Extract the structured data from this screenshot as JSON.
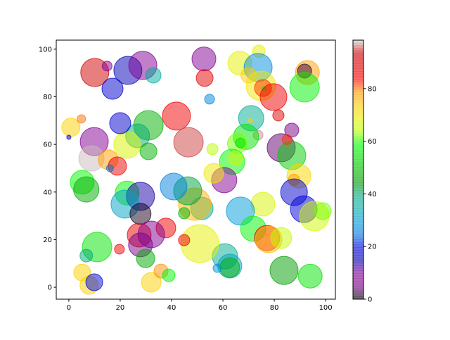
{
  "chart_data": {
    "type": "scatter",
    "title": "",
    "xlabel": "",
    "ylabel": "",
    "xlim": [
      -4.9,
      103.8
    ],
    "ylim": [
      -5,
      103.8
    ],
    "xticks": [
      0,
      20,
      40,
      60,
      80,
      100
    ],
    "yticks": [
      0,
      20,
      40,
      60,
      80,
      100
    ],
    "grid": false,
    "alpha": 0.5,
    "colormap": "nipy_spectral",
    "colorbar": {
      "range": [
        0,
        98.4
      ],
      "ticks": [
        0,
        20,
        40,
        60,
        80
      ]
    },
    "points_format": [
      "x",
      "y",
      "size",
      "color_value"
    ],
    "points": [
      [
        10.1,
        90.2,
        830,
        92
      ],
      [
        14.9,
        92.9,
        102,
        8
      ],
      [
        17,
        83.4,
        467,
        18
      ],
      [
        23,
        91.1,
        830,
        16
      ],
      [
        28.8,
        93.2,
        830,
        8
      ],
      [
        32.9,
        89,
        251,
        36
      ],
      [
        52.6,
        95.9,
        600,
        8
      ],
      [
        52.9,
        87.9,
        299,
        88
      ],
      [
        54.8,
        79,
        102,
        26
      ],
      [
        66.6,
        94.1,
        600,
        68
      ],
      [
        74,
        99.1,
        168,
        68
      ],
      [
        73.7,
        92.3,
        830,
        28
      ],
      [
        70,
        89,
        251,
        74
      ],
      [
        74.8,
        84.6,
        915,
        70
      ],
      [
        75.6,
        83.7,
        299,
        82
      ],
      [
        75.9,
        83.4,
        19,
        58
      ],
      [
        79.7,
        79.9,
        750,
        86
      ],
      [
        92.9,
        90.2,
        600,
        78
      ],
      [
        91.8,
        90.8,
        208,
        2
      ],
      [
        91.8,
        84,
        915,
        57
      ],
      [
        81.6,
        72.2,
        133,
        88
      ],
      [
        71,
        71,
        673,
        38
      ],
      [
        70.7,
        70,
        19,
        72
      ],
      [
        73.7,
        63.9,
        102,
        97
      ],
      [
        86.8,
        66,
        208,
        5
      ],
      [
        69,
        63.2,
        673,
        55
      ],
      [
        65.6,
        60.4,
        407,
        62
      ],
      [
        66.8,
        60.6,
        102,
        55
      ],
      [
        55.9,
        58,
        133,
        64
      ],
      [
        63.6,
        52.7,
        673,
        58
      ],
      [
        64.9,
        54.2,
        208,
        66
      ],
      [
        82.7,
        58.6,
        830,
        4
      ],
      [
        86.8,
        55.3,
        830,
        52
      ],
      [
        85,
        62,
        102,
        82
      ],
      [
        89.6,
        46.7,
        600,
        72
      ],
      [
        87.7,
        45.2,
        133,
        78
      ],
      [
        87.7,
        39.9,
        750,
        18
      ],
      [
        91.5,
        32.8,
        750,
        19
      ],
      [
        95.6,
        29.9,
        915,
        66
      ],
      [
        98.9,
        32,
        299,
        62
      ],
      [
        75.6,
        34.9,
        600,
        67
      ],
      [
        66.8,
        32,
        830,
        30
      ],
      [
        71.8,
        24.6,
        673,
        58
      ],
      [
        77.2,
        20.7,
        673,
        86
      ],
      [
        77.8,
        20.1,
        750,
        76
      ],
      [
        82.7,
        20.7,
        467,
        65
      ],
      [
        60.8,
        13,
        673,
        38
      ],
      [
        62.7,
        8.9,
        600,
        32
      ],
      [
        62.7,
        8.3,
        407,
        48
      ],
      [
        57.8,
        8,
        75,
        28
      ],
      [
        83.8,
        7.1,
        830,
        45
      ],
      [
        94,
        4.7,
        600,
        55
      ],
      [
        51,
        18.3,
        1512,
        68
      ],
      [
        51.8,
        33.1,
        531,
        38
      ],
      [
        49,
        34.9,
        1098,
        76
      ],
      [
        46.3,
        40.5,
        830,
        42
      ],
      [
        44.9,
        31.1,
        133,
        48
      ],
      [
        40.8,
        42.3,
        750,
        26
      ],
      [
        60.5,
        45,
        673,
        9
      ],
      [
        56.4,
        47.9,
        407,
        70
      ],
      [
        41.9,
        71.9,
        830,
        86
      ],
      [
        46.6,
        60.9,
        915,
        95
      ],
      [
        31,
        68,
        915,
        48
      ],
      [
        26.8,
        63.6,
        600,
        40
      ],
      [
        31,
        57.1,
        299,
        48
      ],
      [
        22.7,
        59.8,
        750,
        67
      ],
      [
        20,
        68.9,
        467,
        18
      ],
      [
        9.9,
        61.2,
        830,
        8
      ],
      [
        0.8,
        67.2,
        351,
        73
      ],
      [
        4.9,
        70.7,
        75,
        80
      ],
      [
        0,
        63,
        19,
        16
      ],
      [
        8.8,
        54.1,
        673,
        98
      ],
      [
        15.3,
        53.6,
        407,
        78
      ],
      [
        18.9,
        50.9,
        351,
        86
      ],
      [
        16,
        50,
        52,
        25
      ],
      [
        5.2,
        44.1,
        600,
        58
      ],
      [
        6.8,
        41.1,
        673,
        47
      ],
      [
        22.7,
        39.6,
        600,
        58
      ],
      [
        27.9,
        38.2,
        830,
        14
      ],
      [
        21.9,
        34.9,
        830,
        32
      ],
      [
        27.9,
        30.8,
        467,
        1
      ],
      [
        37.8,
        24.9,
        407,
        86
      ],
      [
        27.4,
        21.9,
        600,
        87
      ],
      [
        32.1,
        22.2,
        750,
        8
      ],
      [
        27.9,
        17.8,
        600,
        6
      ],
      [
        29.9,
        12.1,
        351,
        47
      ],
      [
        44.9,
        19.8,
        133,
        86
      ],
      [
        11,
        16.9,
        915,
        55
      ],
      [
        6.8,
        13.3,
        168,
        40
      ],
      [
        19.7,
        16,
        102,
        86
      ],
      [
        5.2,
        6.2,
        299,
        73
      ],
      [
        7.9,
        0.9,
        351,
        73
      ],
      [
        9.9,
        2.1,
        299,
        20
      ],
      [
        32.1,
        2.1,
        407,
        73
      ],
      [
        35.9,
        6.8,
        208,
        79
      ],
      [
        38.9,
        5,
        168,
        58
      ]
    ]
  }
}
